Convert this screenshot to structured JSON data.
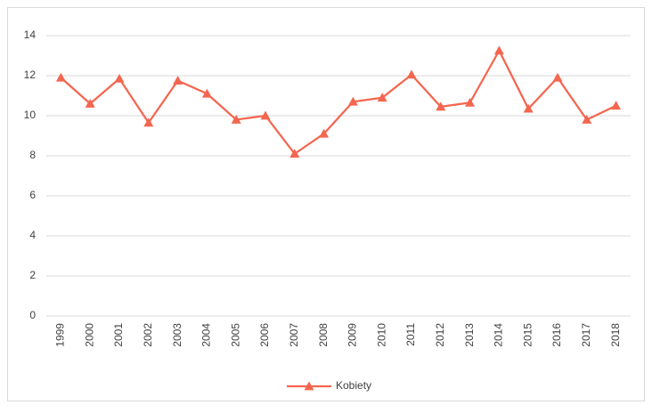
{
  "chart_data": {
    "type": "line",
    "categories": [
      "1999",
      "2000",
      "2001",
      "2002",
      "2003",
      "2004",
      "2005",
      "2006",
      "2007",
      "2008",
      "2009",
      "2010",
      "2011",
      "2012",
      "2013",
      "2014",
      "2015",
      "2016",
      "2017",
      "2018"
    ],
    "series": [
      {
        "name": "Kobiety",
        "color": "#f4664f",
        "values": [
          11.9,
          10.6,
          11.85,
          9.65,
          11.75,
          11.1,
          9.8,
          10.0,
          8.1,
          9.1,
          10.7,
          10.9,
          12.05,
          10.45,
          10.65,
          13.25,
          10.35,
          11.9,
          9.8,
          10.5
        ]
      }
    ],
    "ylim": [
      0,
      14
    ],
    "yticks": [
      0,
      2,
      4,
      6,
      8,
      10,
      12,
      14
    ],
    "grid": true,
    "legend": "bottom"
  }
}
